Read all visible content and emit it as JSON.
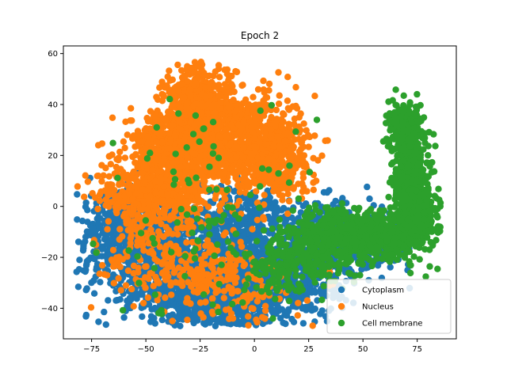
{
  "chart_data": {
    "type": "scatter",
    "title": "Epoch 2",
    "xlabel": "",
    "ylabel": "",
    "xlim": [
      -88,
      93
    ],
    "ylim": [
      -52,
      63
    ],
    "xticks": [
      -75,
      -50,
      -25,
      0,
      25,
      50,
      75
    ],
    "yticks": [
      -40,
      -20,
      0,
      20,
      40,
      60
    ],
    "grid": false,
    "legend_position": "lower-right",
    "series": [
      {
        "name": "Cytoplasm",
        "color": "#1f77b4",
        "clusters": [
          {
            "cx": -40,
            "cy": -20,
            "sx": 18,
            "sy": 12,
            "n": 900
          },
          {
            "cx": -20,
            "cy": -35,
            "sx": 14,
            "sy": 7,
            "n": 700
          },
          {
            "cx": 5,
            "cy": -30,
            "sx": 16,
            "sy": 9,
            "n": 600
          },
          {
            "cx": -60,
            "cy": -8,
            "sx": 10,
            "sy": 8,
            "n": 300
          },
          {
            "cx": 30,
            "cy": -15,
            "sx": 12,
            "sy": 8,
            "n": 350
          },
          {
            "cx": 55,
            "cy": -15,
            "sx": 10,
            "sy": 5,
            "n": 200
          },
          {
            "cx": -5,
            "cy": -5,
            "sx": 12,
            "sy": 6,
            "n": 250
          }
        ]
      },
      {
        "name": "Nucleus",
        "color": "#ff7f0e",
        "clusters": [
          {
            "cx": -25,
            "cy": 40,
            "sx": 8,
            "sy": 8,
            "n": 500
          },
          {
            "cx": -35,
            "cy": 22,
            "sx": 12,
            "sy": 8,
            "n": 700
          },
          {
            "cx": -5,
            "cy": 25,
            "sx": 12,
            "sy": 10,
            "n": 700
          },
          {
            "cx": 10,
            "cy": 20,
            "sx": 8,
            "sy": 8,
            "n": 300
          },
          {
            "cx": -48,
            "cy": 5,
            "sx": 12,
            "sy": 6,
            "n": 400
          },
          {
            "cx": -40,
            "cy": -18,
            "sx": 16,
            "sy": 12,
            "n": 250
          },
          {
            "cx": -10,
            "cy": -30,
            "sx": 14,
            "sy": 8,
            "n": 200
          }
        ]
      },
      {
        "name": "Cell membrane",
        "color": "#2ca02c",
        "clusters": [
          {
            "cx": 70,
            "cy": 30,
            "sx": 4,
            "sy": 5,
            "n": 250
          },
          {
            "cx": 72,
            "cy": 12,
            "sx": 4,
            "sy": 6,
            "n": 250
          },
          {
            "cx": 76,
            "cy": -2,
            "sx": 5,
            "sy": 6,
            "n": 300
          },
          {
            "cx": 60,
            "cy": -12,
            "sx": 10,
            "sy": 5,
            "n": 350
          },
          {
            "cx": 38,
            "cy": -12,
            "sx": 10,
            "sy": 6,
            "n": 400
          },
          {
            "cx": 15,
            "cy": -22,
            "sx": 10,
            "sy": 6,
            "n": 200
          },
          {
            "cx": -20,
            "cy": -10,
            "sx": 25,
            "sy": 25,
            "n": 120
          }
        ]
      }
    ]
  }
}
